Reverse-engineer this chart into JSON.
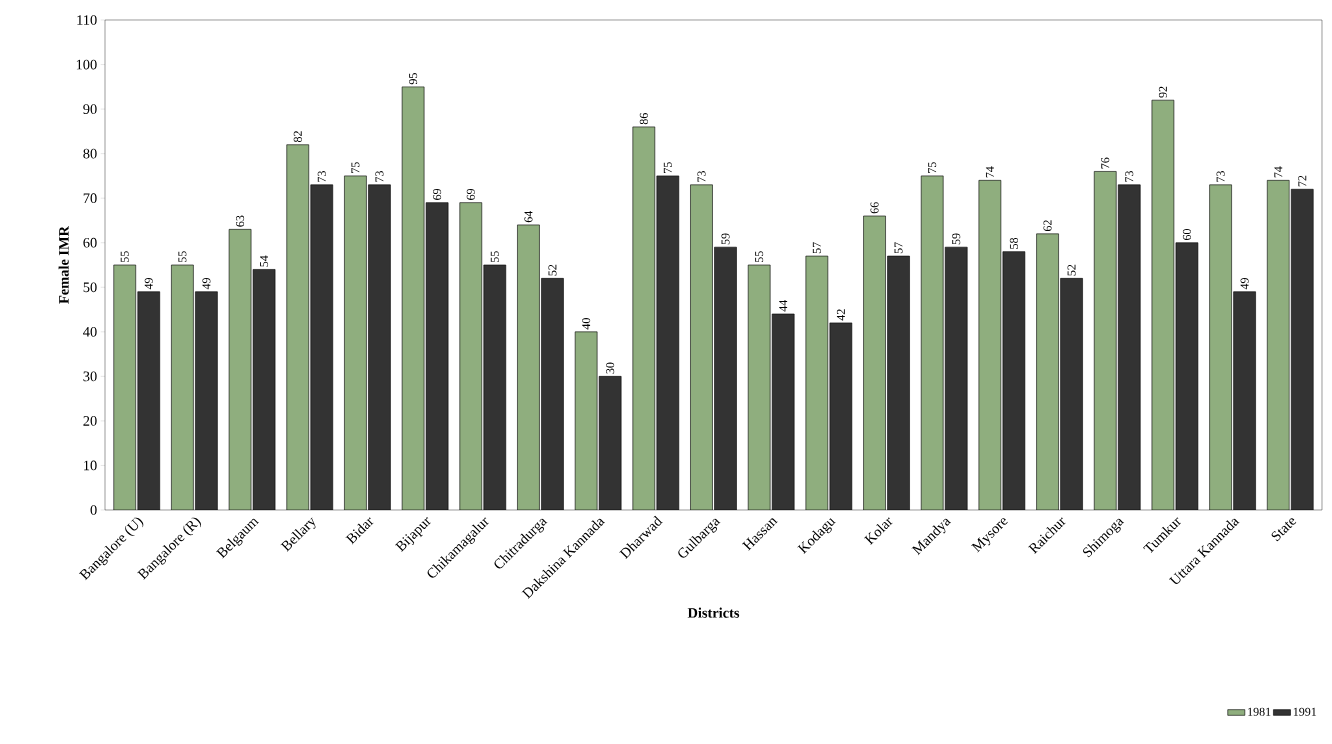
{
  "chart_data": {
    "type": "bar",
    "xlabel": "Districts",
    "ylabel": "Female IMR",
    "categories": [
      "Bangalore (U)",
      "Bangalore (R)",
      "Belgaum",
      "Bellary",
      "Bidar",
      "Bijapur",
      "Chikamagalur",
      "Chitradurga",
      "Dakshina Kannada",
      "Dharwad",
      "Gulbarga",
      "Hassan",
      "Kodagu",
      "Kolar",
      "Mandya",
      "Mysore",
      "Raichur",
      "Shimoga",
      "Tumkur",
      "Uttara Kannada",
      "State"
    ],
    "series": [
      {
        "name": "1981",
        "color": "#8fae7e",
        "values": [
          55,
          55,
          63,
          82,
          75,
          95,
          69,
          64,
          40,
          86,
          73,
          55,
          57,
          66,
          75,
          74,
          62,
          76,
          92,
          73,
          74
        ]
      },
      {
        "name": "1991",
        "color": "#333333",
        "values": [
          49,
          49,
          54,
          73,
          73,
          69,
          55,
          52,
          30,
          75,
          59,
          44,
          42,
          57,
          59,
          58,
          52,
          73,
          60,
          49,
          72
        ]
      }
    ],
    "ylim": [
      0,
      110
    ],
    "yticks": [
      0,
      10,
      20,
      30,
      40,
      50,
      60,
      70,
      80,
      90,
      100,
      110
    ],
    "data_labels": true,
    "grid": false,
    "legend": "bottom right"
  }
}
